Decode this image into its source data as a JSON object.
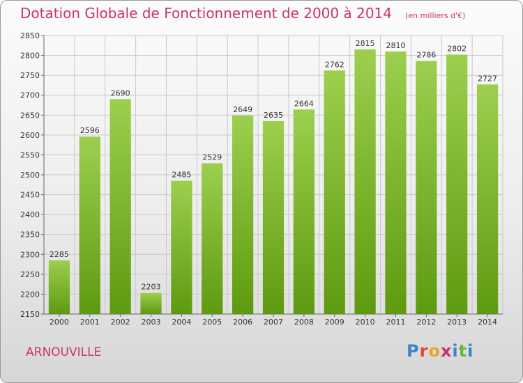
{
  "header": {
    "title": "Dotation Globale de Fonctionnement de 2000 à 2014",
    "unit": "(en milliers d'€)"
  },
  "footer": {
    "commune": "ARNOUVILLE",
    "logo_letters": [
      "P",
      "r",
      "o",
      "x",
      "i",
      "t",
      "i"
    ]
  },
  "colors": {
    "title": "#cc3366",
    "bar_light": "#9ccf4e",
    "bar_dark": "#5e9a10",
    "grid": "#c8c8c8",
    "logo": [
      "#3a86c8",
      "#e3462e",
      "#f2a120",
      "#cc2f7a",
      "#3a86c8",
      "#6cb33f",
      "#3a86c8"
    ]
  },
  "chart_data": {
    "type": "bar",
    "categories": [
      "2000",
      "2001",
      "2002",
      "2003",
      "2004",
      "2005",
      "2006",
      "2007",
      "2008",
      "2009",
      "2010",
      "2011",
      "2012",
      "2013",
      "2014"
    ],
    "values": [
      2285,
      2596,
      2690,
      2203,
      2485,
      2529,
      2649,
      2635,
      2664,
      2762,
      2815,
      2810,
      2786,
      2802,
      2727
    ],
    "title": "Dotation Globale de Fonctionnement de 2000 à 2014",
    "ylabel": "",
    "xlabel": "",
    "ylim": [
      2150,
      2850
    ],
    "yticks": [
      2150,
      2200,
      2250,
      2300,
      2350,
      2400,
      2450,
      2500,
      2550,
      2600,
      2650,
      2700,
      2750,
      2800,
      2850
    ],
    "grid": true,
    "legend": "none"
  }
}
